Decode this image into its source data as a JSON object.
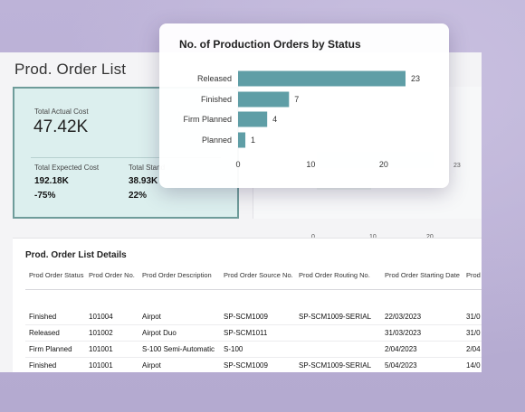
{
  "page": {
    "title": "Prod. Order List"
  },
  "kpis": {
    "total_actual_cost_label": "Total Actual Cost",
    "total_actual_cost_value": "47.42K",
    "total_expected_cost_label": "Total Expected Cost",
    "total_expected_cost_value": "192.18K",
    "total_expected_cost_delta": "-75%",
    "total_standard_cost_label": "Total Stand",
    "total_standard_cost_value": "38.93K",
    "total_standard_cost_delta": "22%"
  },
  "background_chart": {
    "value_label": "23",
    "ticks": [
      "0",
      "10",
      "20"
    ]
  },
  "details": {
    "title": "Prod. Order List Details",
    "columns": [
      "Prod Order Status",
      "Prod Order No.",
      "Prod Order Description",
      "Prod Order Source No.",
      "Prod Order Routing No.",
      "Prod Order Starting Date",
      "Prod"
    ],
    "rows": [
      [
        "Finished",
        "101004",
        "Airpot",
        "SP-SCM1009",
        "SP-SCM1009-SERIAL",
        "22/03/2023",
        "31/0"
      ],
      [
        "Released",
        "101002",
        "Airpot Duo",
        "SP-SCM1011",
        "",
        "31/03/2023",
        "31/0"
      ],
      [
        "Firm Planned",
        "101001",
        "S-100 Semi-Automatic",
        "S-100",
        "",
        "2/04/2023",
        "2/04"
      ],
      [
        "Finished",
        "101001",
        "Airpot",
        "SP-SCM1009",
        "SP-SCM1009-SERIAL",
        "5/04/2023",
        "14/0"
      ]
    ]
  },
  "colors": {
    "bar": "#5f9ea6",
    "kpi_bg": "#dcefee"
  },
  "chart_data": {
    "type": "bar",
    "orientation": "horizontal",
    "title": "No. of Production Orders by Status",
    "categories": [
      "Released",
      "Finished",
      "Firm Planned",
      "Planned"
    ],
    "values": [
      23,
      7,
      4,
      1
    ],
    "xlim": [
      0,
      23
    ],
    "xticks": [
      0,
      10,
      20
    ],
    "xlabel": "",
    "ylabel": "",
    "grid": false
  }
}
